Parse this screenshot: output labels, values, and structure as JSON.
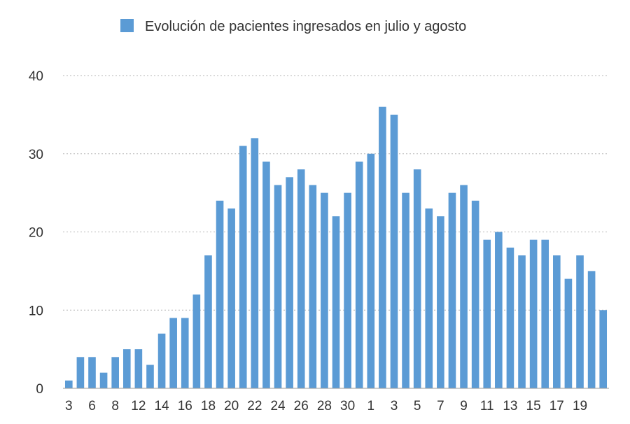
{
  "chart_data": {
    "type": "bar",
    "legend": {
      "label": "Evolución de pacientes ingresados en julio y agosto",
      "position": "top"
    },
    "series": [
      {
        "name": "Evolución de pacientes ingresados en julio y agosto",
        "color": "#5b9bd5",
        "values": [
          1,
          4,
          4,
          2,
          4,
          5,
          5,
          3,
          7,
          9,
          9,
          12,
          17,
          24,
          23,
          31,
          32,
          29,
          26,
          27,
          28,
          26,
          25,
          22,
          25,
          29,
          30,
          36,
          35,
          25,
          28,
          23,
          22,
          25,
          26,
          24,
          19,
          20,
          18,
          17,
          19,
          19,
          17,
          14,
          17,
          15,
          10
        ]
      }
    ],
    "x_tick_labels": [
      {
        "index": 0,
        "label": "3"
      },
      {
        "index": 2,
        "label": "6"
      },
      {
        "index": 4,
        "label": "8"
      },
      {
        "index": 6,
        "label": "12"
      },
      {
        "index": 8,
        "label": "14"
      },
      {
        "index": 10,
        "label": "16"
      },
      {
        "index": 12,
        "label": "18"
      },
      {
        "index": 14,
        "label": "20"
      },
      {
        "index": 16,
        "label": "22"
      },
      {
        "index": 18,
        "label": "24"
      },
      {
        "index": 20,
        "label": "26"
      },
      {
        "index": 22,
        "label": "28"
      },
      {
        "index": 24,
        "label": "30"
      },
      {
        "index": 26,
        "label": "1"
      },
      {
        "index": 28,
        "label": "3"
      },
      {
        "index": 30,
        "label": "5"
      },
      {
        "index": 32,
        "label": "7"
      },
      {
        "index": 34,
        "label": "9"
      },
      {
        "index": 36,
        "label": "11"
      },
      {
        "index": 38,
        "label": "13"
      },
      {
        "index": 40,
        "label": "15"
      },
      {
        "index": 42,
        "label": "17"
      },
      {
        "index": 44,
        "label": "19"
      }
    ],
    "y_ticks": [
      0,
      10,
      20,
      30,
      40
    ],
    "ylim": [
      0,
      40
    ],
    "grid": true
  }
}
